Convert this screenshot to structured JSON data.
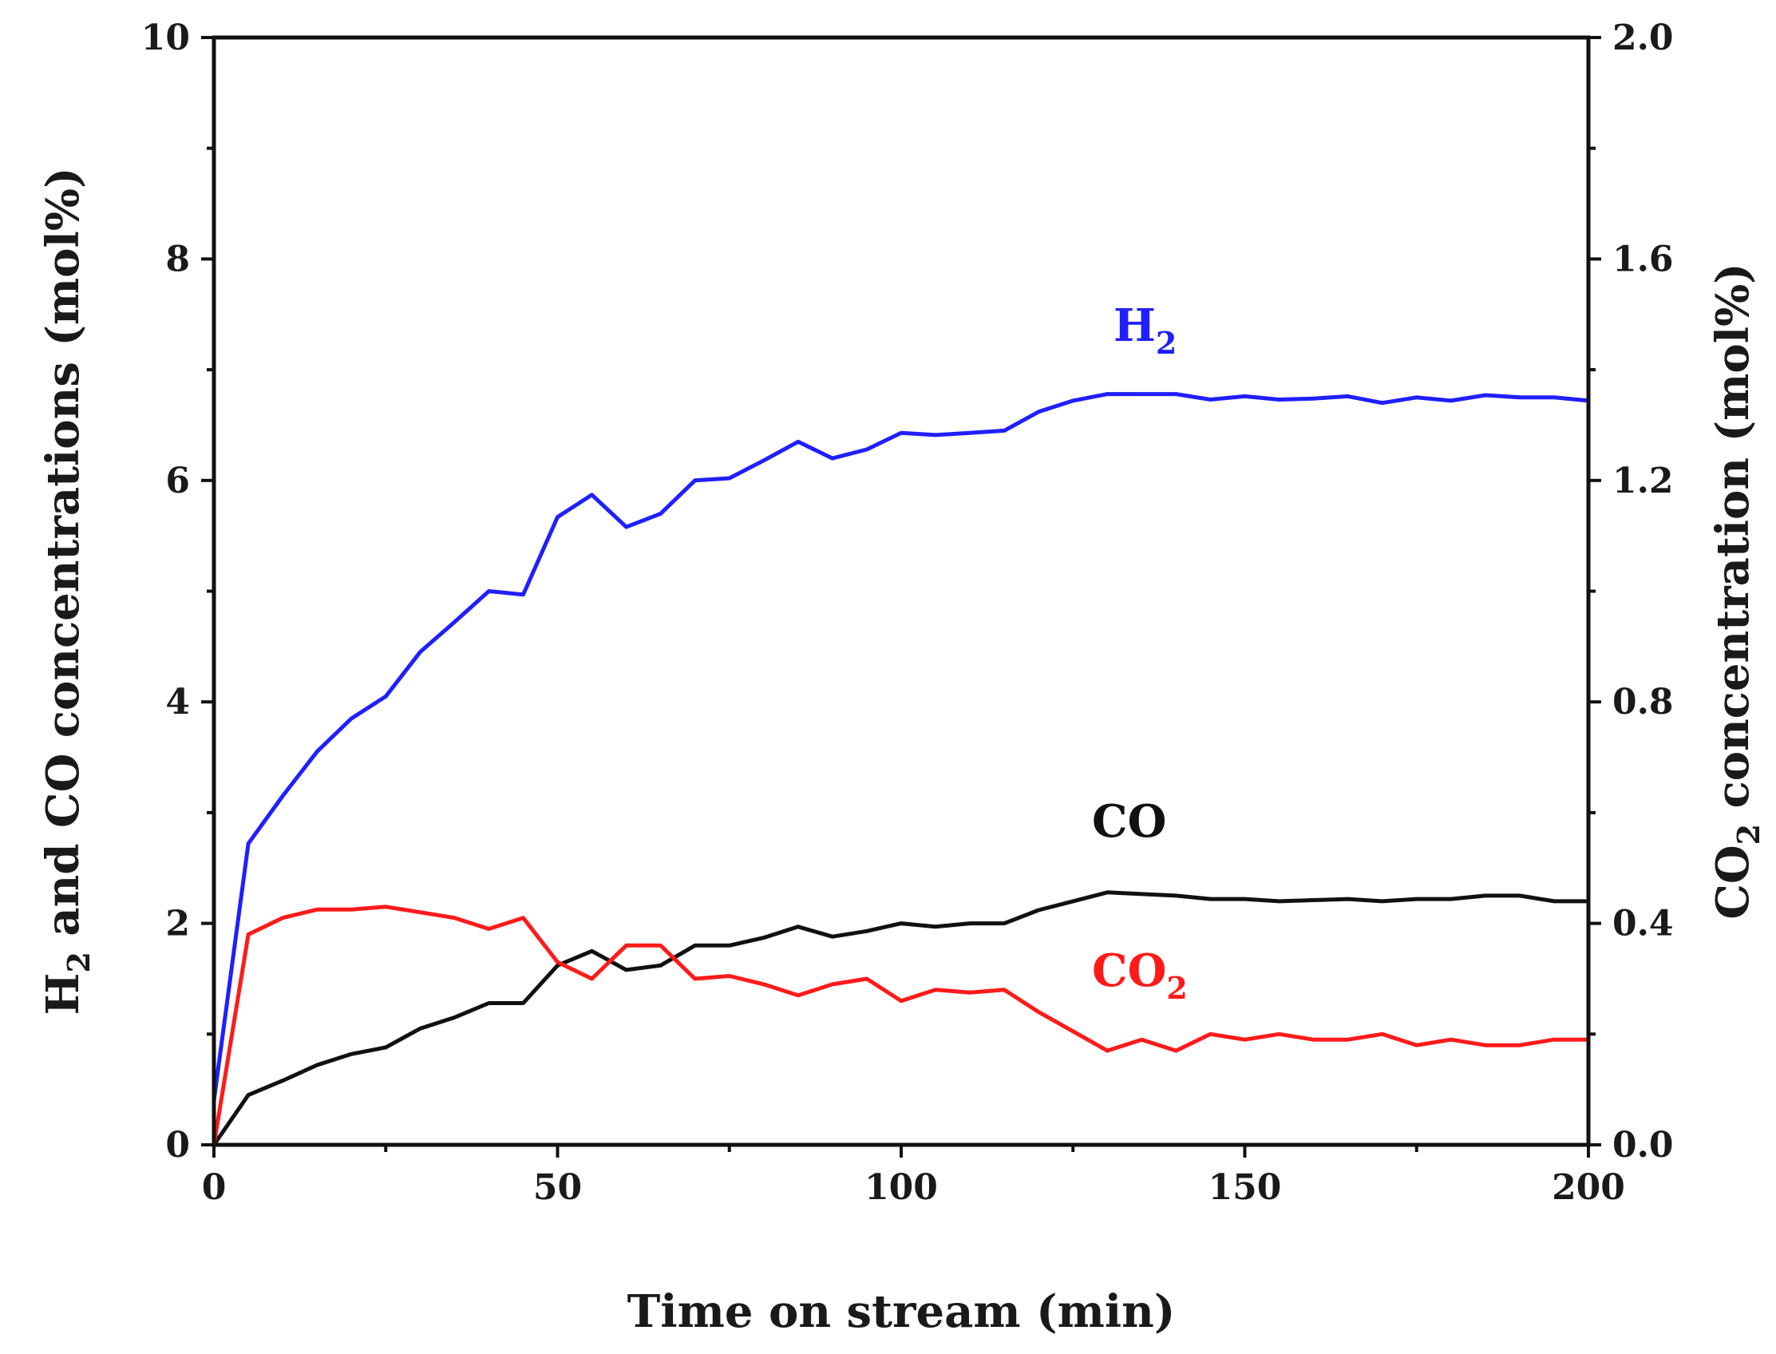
{
  "chart_data": {
    "type": "line",
    "title": "",
    "xlabel": "Time on stream (min)",
    "ylabel_left": {
      "prefix": "H",
      "sub": "2",
      "rest": " and CO concentrations (mol%)"
    },
    "ylabel_right": {
      "prefix": "CO",
      "sub": "2",
      "rest": " concentration (mol%)"
    },
    "xlim": [
      0,
      200
    ],
    "ylim_left": [
      0,
      10
    ],
    "ylim_right": [
      0.0,
      2.0
    ],
    "x_ticks": [
      "0",
      "50",
      "100",
      "150",
      "200"
    ],
    "y_left_ticks": [
      "0",
      "2",
      "4",
      "6",
      "8",
      "10"
    ],
    "y_right_ticks": [
      "0.0",
      "0.4",
      "0.8",
      "1.2",
      "1.6",
      "2.0"
    ],
    "series": [
      {
        "name": "H2",
        "label_main": "H",
        "label_sub": "2",
        "color": "#1f1fff",
        "axis": "left",
        "x": [
          0,
          5,
          10,
          15,
          20,
          25,
          30,
          35,
          40,
          45,
          50,
          55,
          60,
          65,
          70,
          75,
          80,
          85,
          90,
          95,
          100,
          105,
          110,
          115,
          120,
          125,
          130,
          140,
          145,
          150,
          155,
          160,
          165,
          170,
          175,
          180,
          185,
          190,
          195,
          200
        ],
        "values": [
          0.4,
          2.72,
          3.15,
          3.55,
          3.85,
          4.05,
          4.45,
          4.72,
          5.0,
          4.97,
          5.67,
          5.87,
          5.58,
          5.7,
          6.0,
          6.02,
          6.18,
          6.35,
          6.2,
          6.28,
          6.43,
          6.41,
          6.43,
          6.45,
          6.62,
          6.72,
          6.78,
          6.78,
          6.73,
          6.76,
          6.73,
          6.74,
          6.76,
          6.7,
          6.75,
          6.72,
          6.77,
          6.75,
          6.75,
          6.72
        ]
      },
      {
        "name": "CO",
        "label_main": "CO",
        "label_sub": "",
        "color": "#111111",
        "axis": "left",
        "x": [
          0,
          5,
          10,
          15,
          20,
          25,
          30,
          35,
          40,
          45,
          50,
          55,
          60,
          65,
          70,
          75,
          80,
          85,
          90,
          95,
          100,
          105,
          110,
          115,
          120,
          125,
          130,
          140,
          145,
          150,
          155,
          160,
          165,
          170,
          175,
          180,
          185,
          190,
          195,
          200
        ],
        "values": [
          0.0,
          0.45,
          0.58,
          0.72,
          0.82,
          0.88,
          1.05,
          1.15,
          1.28,
          1.28,
          1.62,
          1.75,
          1.58,
          1.62,
          1.8,
          1.8,
          1.87,
          1.97,
          1.88,
          1.93,
          2.0,
          1.97,
          2.0,
          2.0,
          2.12,
          2.2,
          2.28,
          2.25,
          2.22,
          2.22,
          2.2,
          2.21,
          2.22,
          2.2,
          2.22,
          2.22,
          2.25,
          2.25,
          2.2,
          2.2
        ]
      },
      {
        "name": "CO2",
        "label_main": "CO",
        "label_sub": "2",
        "color": "#ff1a1a",
        "axis": "right",
        "x": [
          0,
          5,
          10,
          15,
          20,
          25,
          30,
          35,
          40,
          45,
          50,
          55,
          60,
          65,
          70,
          75,
          80,
          85,
          90,
          95,
          100,
          105,
          110,
          115,
          120,
          125,
          130,
          135,
          140,
          145,
          150,
          155,
          160,
          165,
          170,
          175,
          180,
          185,
          190,
          195,
          200
        ],
        "values": [
          0.0,
          0.38,
          0.41,
          0.425,
          0.425,
          0.43,
          0.42,
          0.41,
          0.39,
          0.41,
          0.33,
          0.3,
          0.36,
          0.36,
          0.3,
          0.305,
          0.29,
          0.27,
          0.29,
          0.3,
          0.26,
          0.28,
          0.275,
          0.28,
          0.24,
          0.205,
          0.17,
          0.19,
          0.17,
          0.2,
          0.19,
          0.2,
          0.19,
          0.19,
          0.2,
          0.18,
          0.19,
          0.18,
          0.18,
          0.19,
          0.19
        ]
      }
    ]
  }
}
